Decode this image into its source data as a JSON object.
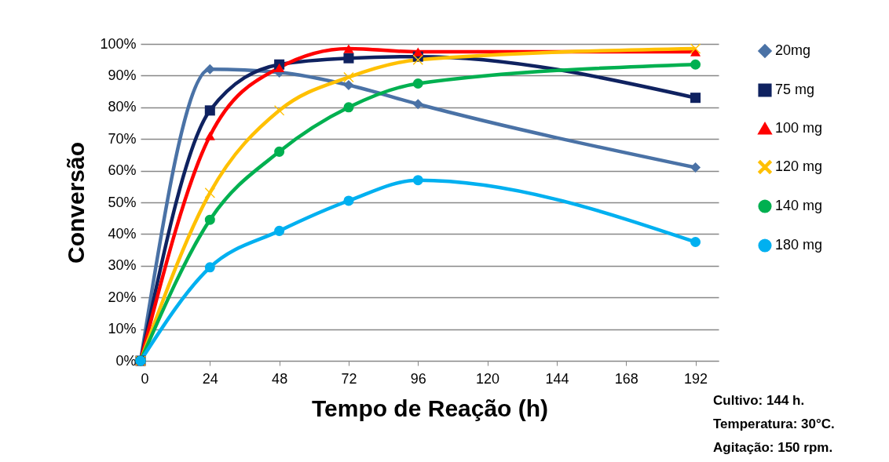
{
  "chart_data": {
    "type": "line",
    "xlabel": "Tempo de Reação (h)",
    "ylabel": "Conversão",
    "x": [
      0,
      24,
      48,
      72,
      96,
      192
    ],
    "series": [
      {
        "name": "20mg",
        "color": "#4a72a6",
        "marker": "diamond",
        "values": [
          0,
          92,
          91,
          87,
          81,
          61
        ]
      },
      {
        "name": "75 mg",
        "color": "#0f2260",
        "marker": "square",
        "values": [
          0,
          79,
          93.5,
          95.5,
          96,
          83
        ]
      },
      {
        "name": "100 mg",
        "color": "#ff0000",
        "marker": "triangle",
        "values": [
          0,
          71,
          92.5,
          98.5,
          97.5,
          97.5
        ]
      },
      {
        "name": "120 mg",
        "color": "#ffc000",
        "marker": "cross",
        "values": [
          0,
          53,
          79,
          89.5,
          95,
          98.5
        ]
      },
      {
        "name": "140 mg",
        "color": "#00b050",
        "marker": "circle",
        "values": [
          0,
          44.5,
          66,
          80,
          87.5,
          93.5
        ]
      },
      {
        "name": "180 mg",
        "color": "#00b0f0",
        "marker": "circle",
        "values": [
          0,
          29.5,
          41,
          50.5,
          57,
          37.5
        ]
      }
    ],
    "xlim": [
      0,
      200
    ],
    "xticks": [
      0,
      24,
      48,
      72,
      96,
      120,
      144,
      168,
      192
    ],
    "ylim": [
      0,
      100
    ],
    "yticks": [
      {
        "value": 0,
        "label": "0%"
      },
      {
        "value": 10,
        "label": "10%"
      },
      {
        "value": 20,
        "label": "20%"
      },
      {
        "value": 30,
        "label": "30%"
      },
      {
        "value": 40,
        "label": "40%"
      },
      {
        "value": 50,
        "label": "50%"
      },
      {
        "value": 60,
        "label": "60%"
      },
      {
        "value": 70,
        "label": "70%"
      },
      {
        "value": 80,
        "label": "80%"
      },
      {
        "value": 90,
        "label": "90%"
      },
      {
        "value": 100,
        "label": "100%"
      }
    ],
    "grid": "y",
    "legend": "right",
    "line_style": "solid",
    "annotations": [
      "Cultivo: 144 h.",
      "Temperatura: 30°C.",
      "Agitação: 150 rpm."
    ]
  }
}
